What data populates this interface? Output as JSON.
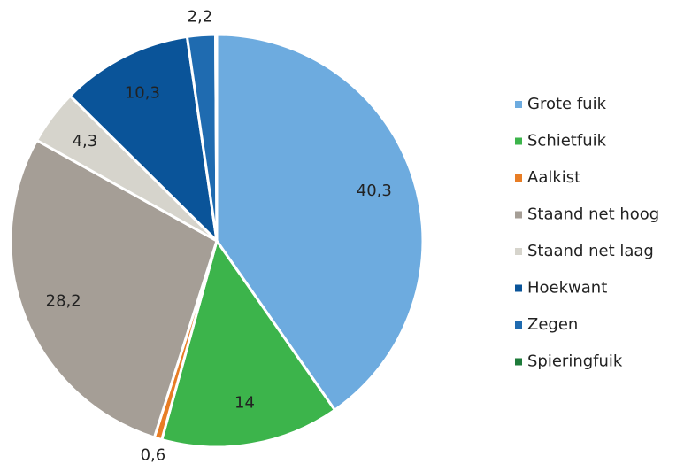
{
  "chart_data": {
    "type": "pie",
    "categories": [
      "Grote fuik",
      "Schietfuik",
      "Aalkist",
      "Staand net hoog",
      "Staand net laag",
      "Hoekwant",
      "Zegen",
      "Spieringfuik"
    ],
    "values": [
      40.3,
      14,
      0.6,
      28.2,
      4.3,
      10.3,
      2.2,
      0.1
    ],
    "value_labels": [
      "40,3",
      "14",
      "0,6",
      "28,2",
      "4,3",
      "10,3",
      "2,2",
      null
    ],
    "colors": [
      "#6dabdf",
      "#3cb44b",
      "#e87d25",
      "#a59e96",
      "#d6d4cc",
      "#0a5499",
      "#1f6bb0",
      "#1e7b3a"
    ],
    "legend": "right"
  }
}
